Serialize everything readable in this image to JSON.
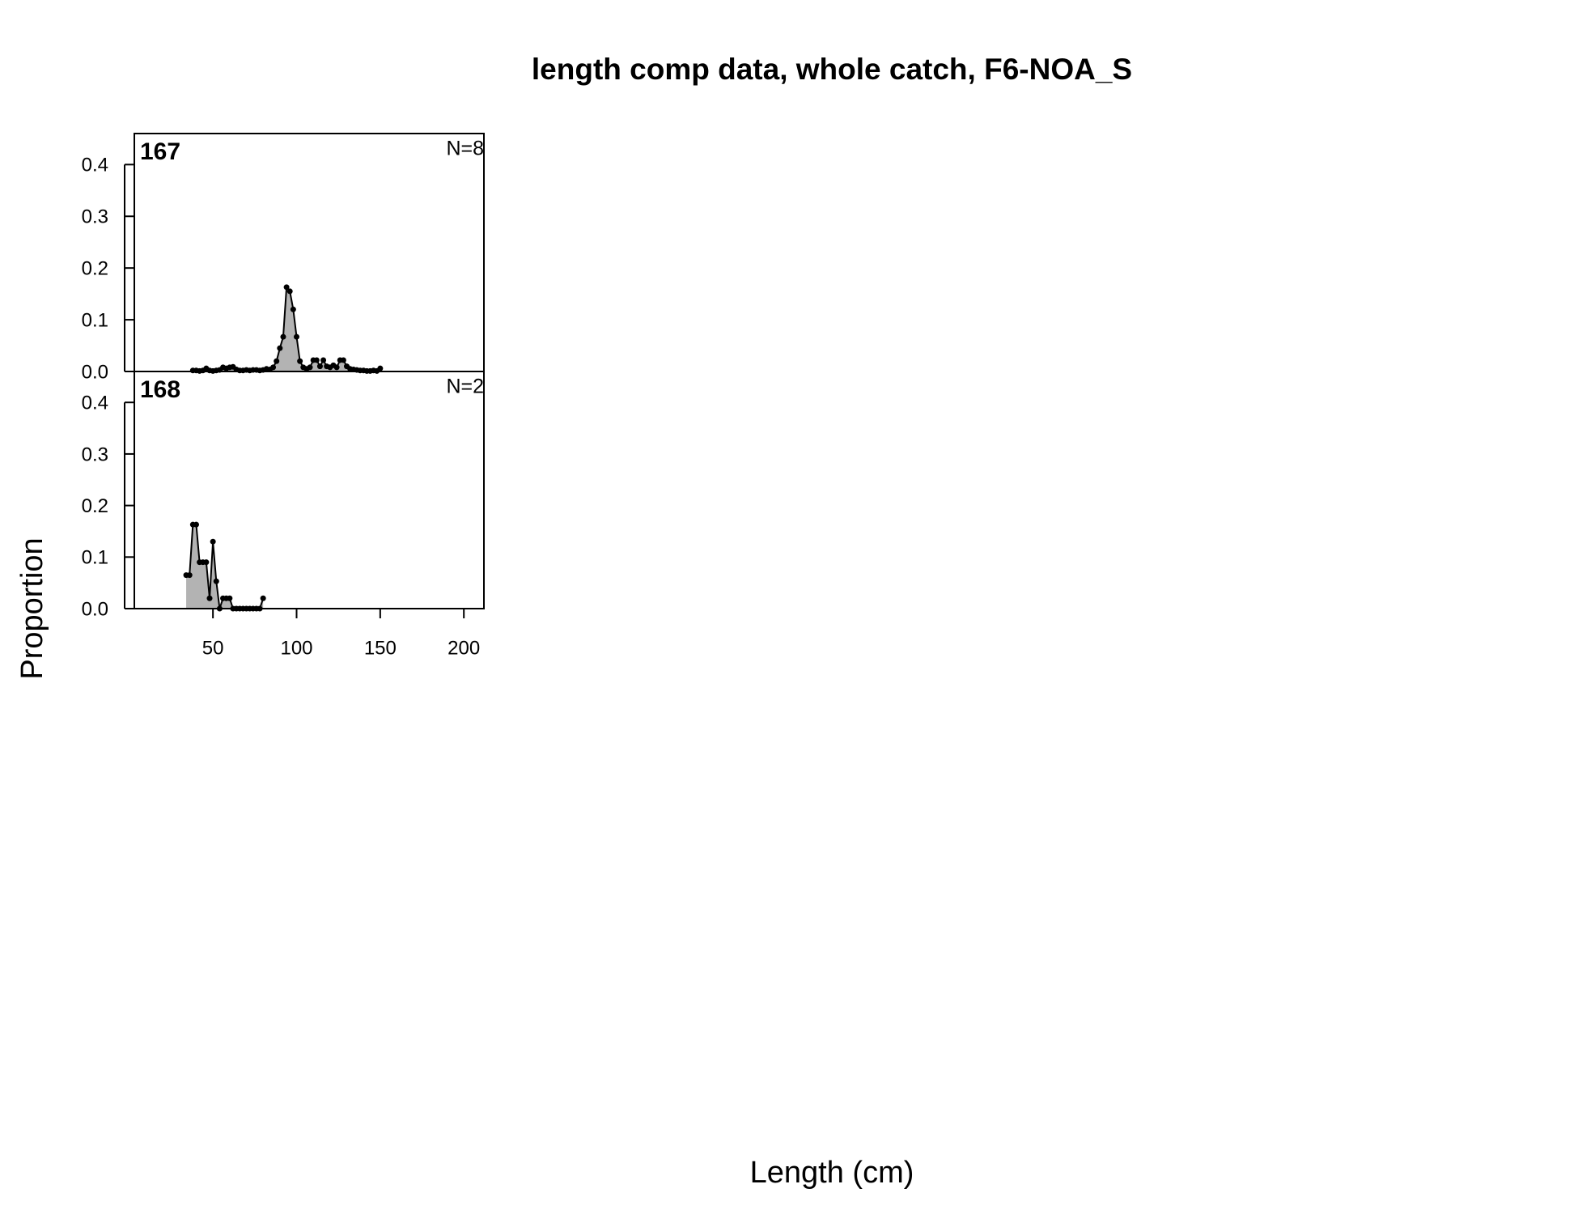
{
  "title": "length comp data, whole catch, F6-NOA_S",
  "x_label": "Length (cm)",
  "y_label": "Proportion",
  "chart_data": [
    {
      "type": "area",
      "label": "167",
      "annotation": "N=8",
      "color": "#b3b3b3",
      "x": [
        38,
        40,
        42,
        44,
        46,
        48,
        50,
        52,
        54,
        56,
        58,
        60,
        62,
        64,
        66,
        68,
        70,
        72,
        74,
        76,
        78,
        80,
        82,
        84,
        86,
        88,
        90,
        92,
        94,
        96,
        98,
        100,
        102,
        104,
        106,
        108,
        110,
        112,
        114,
        116,
        118,
        120,
        122,
        124,
        126,
        128,
        130,
        132,
        134,
        136,
        138,
        140,
        142,
        144,
        146,
        148,
        150
      ],
      "values": [
        0.002,
        0.002,
        0.001,
        0.002,
        0.006,
        0.002,
        0.001,
        0.002,
        0.003,
        0.008,
        0.006,
        0.008,
        0.009,
        0.004,
        0.002,
        0.002,
        0.003,
        0.002,
        0.003,
        0.003,
        0.002,
        0.003,
        0.005,
        0.004,
        0.008,
        0.02,
        0.045,
        0.067,
        0.163,
        0.155,
        0.12,
        0.067,
        0.02,
        0.008,
        0.005,
        0.008,
        0.022,
        0.022,
        0.01,
        0.022,
        0.01,
        0.008,
        0.012,
        0.008,
        0.022,
        0.022,
        0.01,
        0.005,
        0.004,
        0.003,
        0.002,
        0.002,
        0.001,
        0.001,
        0.002,
        0.001,
        0.006
      ],
      "xlim": [
        3,
        212
      ],
      "ylim": [
        0,
        0.46
      ],
      "yticks": [
        {
          "value": 0,
          "label": "0.0"
        },
        0.1,
        0.2,
        0.3,
        0.4
      ]
    },
    {
      "type": "area",
      "label": "168",
      "annotation": "N=2",
      "color": "#b3b3b3",
      "x": [
        34,
        36,
        38,
        40,
        42,
        44,
        46,
        48,
        50,
        52,
        54,
        56,
        58,
        60,
        62,
        64,
        66,
        68,
        70,
        72,
        74,
        76,
        78,
        80
      ],
      "values": [
        0.065,
        0.065,
        0.163,
        0.163,
        0.09,
        0.09,
        0.09,
        0.02,
        0.13,
        0.053,
        0,
        0.02,
        0.02,
        0.02,
        0,
        0,
        0,
        0,
        0,
        0,
        0,
        0,
        0,
        0.02
      ],
      "xlim": [
        3,
        212
      ],
      "ylim": [
        0,
        0.46
      ],
      "yticks": [
        {
          "value": 0,
          "label": "0.0"
        },
        0.1,
        0.2,
        0.3,
        0.4
      ],
      "xticks": [
        50,
        100,
        150,
        200
      ]
    }
  ]
}
